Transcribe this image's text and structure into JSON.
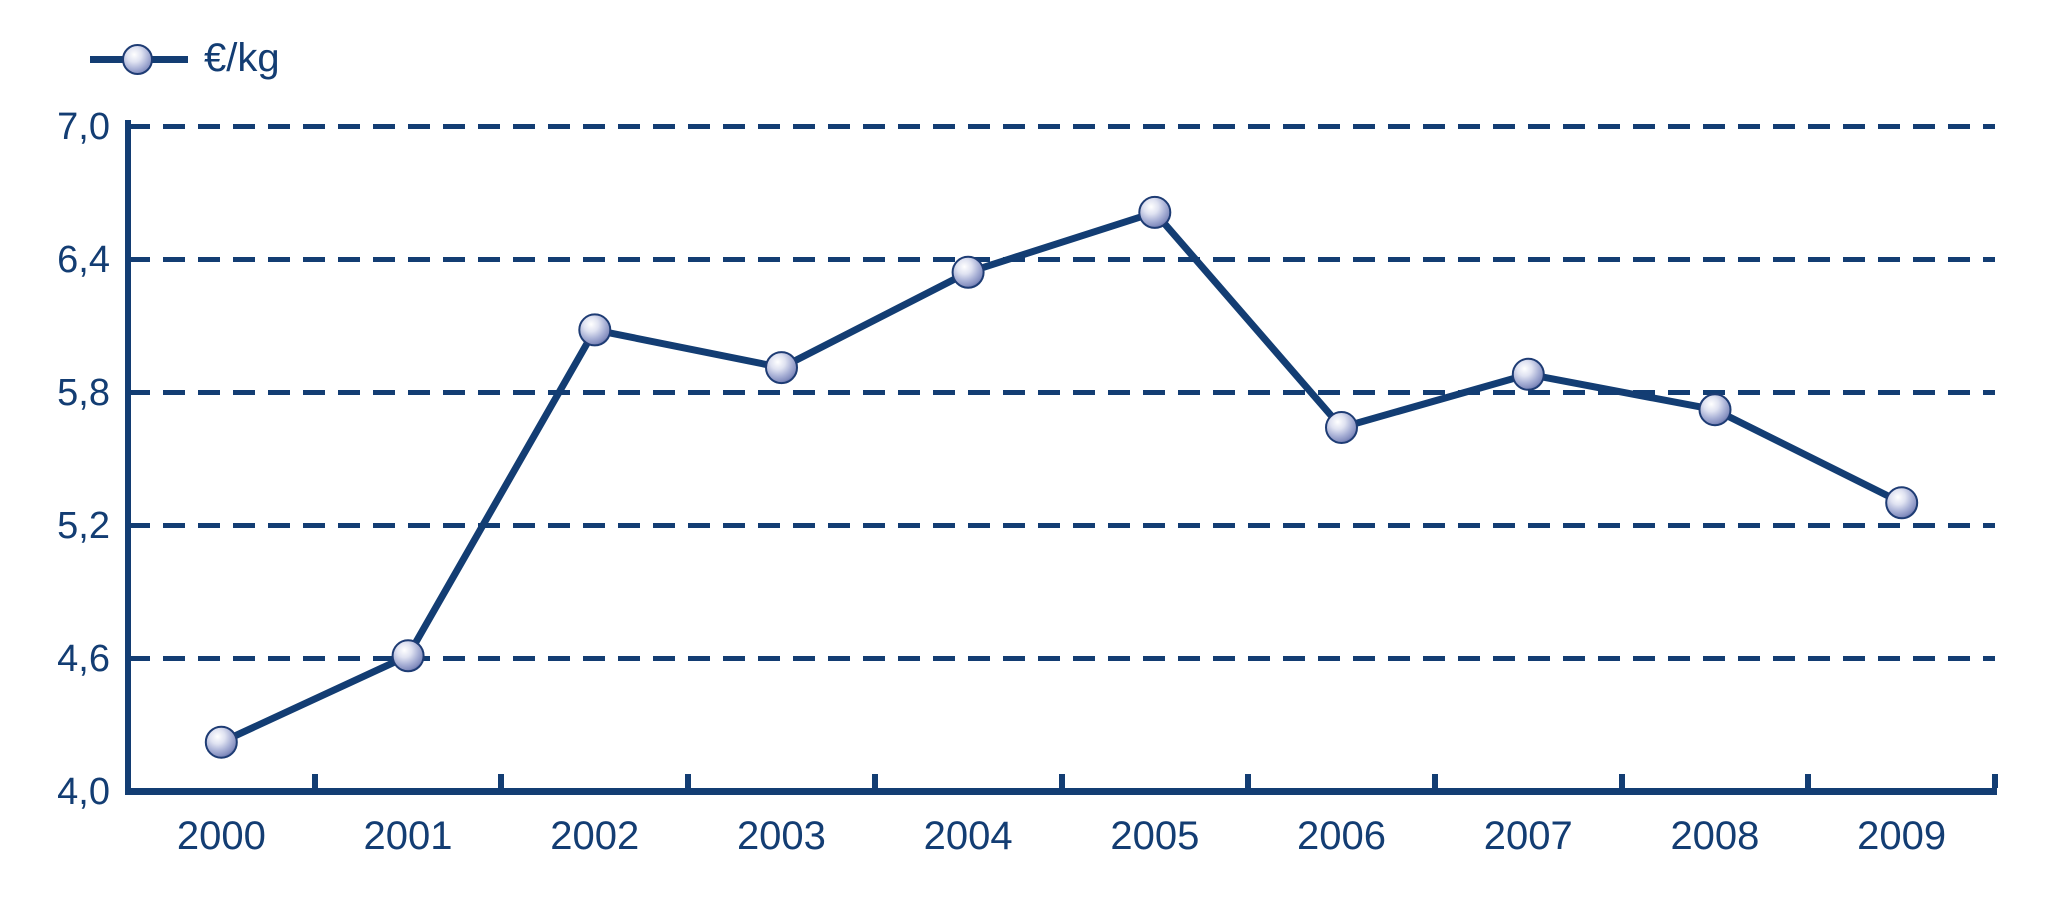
{
  "window": {
    "background": "#FFFFFF"
  },
  "legend": {
    "label": "€/kg",
    "marker_icon": "sphere-marker-icon",
    "position": "top-left"
  },
  "colors": {
    "accent": "#133D73",
    "marker_highlight": "#FFFFFF",
    "marker_light": "#DFE2F1",
    "marker_mid": "#A9B1D6",
    "marker_deep": "#8690C0",
    "marker_shadow": "#3E4F91",
    "marker_rim": "#1E3C74"
  },
  "chart_data": {
    "type": "line",
    "title": "",
    "categories": [
      "2000",
      "2001",
      "2002",
      "2003",
      "2004",
      "2005",
      "2006",
      "2007",
      "2008",
      "2009"
    ],
    "series": [
      {
        "name": "€/kg",
        "values": [
          4.22,
          4.61,
          6.08,
          5.91,
          6.34,
          6.61,
          5.64,
          5.88,
          5.72,
          5.3
        ]
      }
    ],
    "ylim": [
      4.0,
      7.0
    ],
    "yticks": [
      4.0,
      4.6,
      5.2,
      5.8,
      6.4,
      7.0
    ],
    "ytick_labels": [
      "4,0",
      "4,6",
      "5,2",
      "5,8",
      "6,4",
      "7,0"
    ],
    "xlabel": "",
    "ylabel": "",
    "decimal_separator": ",",
    "grid": "horizontal-dashed",
    "legend_position": "top-left",
    "marker": "sphere",
    "line_width": 7,
    "marker_radius": 15.5
  }
}
